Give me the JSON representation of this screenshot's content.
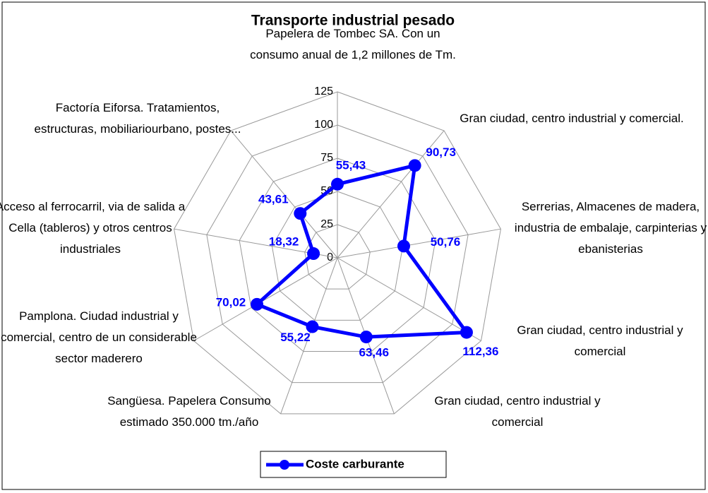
{
  "chart_data": {
    "type": "radar",
    "title": "Transporte industrial pesado",
    "categories": [
      "Papelera de Tombec SA. Con un consumo anual de 1,2 millones de Tm.",
      "Gran ciudad, centro industrial y comercial.",
      "Serrerias, Almacenes de madera, industria de embalaje, carpinterias y ebanisterias",
      "Gran ciudad, centro industrial y comercial",
      "Gran ciudad, centro industrial y comercial",
      "Sangüesa. Papelera Consumo estimado 350.000 tm./año",
      "Pamplona. Ciudad industrial y comercial, centro de un considerable sector maderero",
      "Acceso al ferrocarril, via de salida a Cella (tableros) y otros centros industriales",
      "Factoría Eiforsa. Tratamientos, estructuras, mobiliariourbano, postes..."
    ],
    "series": [
      {
        "name": "Coste carburante",
        "color": "#0000ff",
        "values": [
          55.43,
          90.73,
          50.76,
          112.36,
          63.46,
          55.22,
          70.02,
          18.32,
          43.61
        ],
        "value_labels": [
          "55,43",
          "90,73",
          "50,76",
          "112,36",
          "63,46",
          "55,22",
          "70,02",
          "18,32",
          "43,61"
        ]
      }
    ],
    "ylim": [
      0,
      125
    ],
    "yticks": [
      0,
      25,
      50,
      75,
      100,
      125
    ],
    "grid": true,
    "legend": "bottom"
  }
}
